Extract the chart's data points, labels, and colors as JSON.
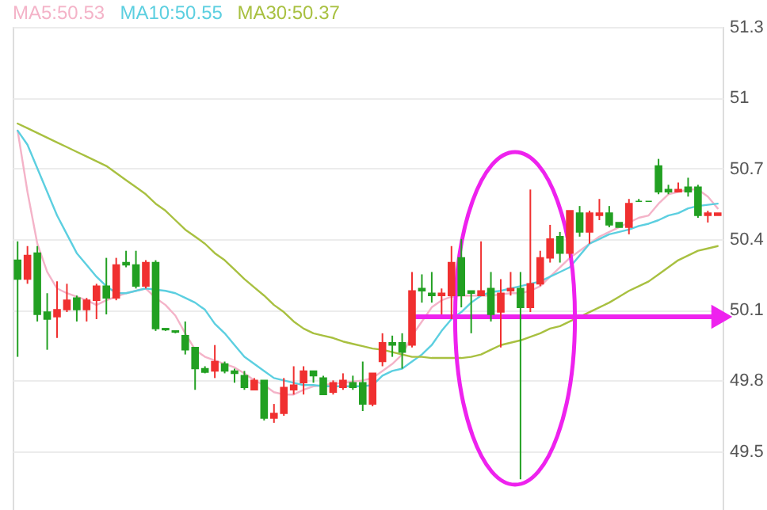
{
  "chart_data": {
    "type": "candlestick",
    "categories": [
      null,
      null,
      null,
      null,
      null,
      null,
      null,
      null,
      null,
      null,
      null,
      null,
      null,
      null,
      null,
      null,
      null,
      null,
      null,
      null,
      null,
      null,
      null,
      null,
      null,
      null,
      null,
      null,
      null,
      null,
      null,
      null,
      null,
      null,
      null,
      null,
      null,
      null,
      null,
      null,
      null,
      null,
      null,
      null,
      null,
      null,
      null,
      null,
      null,
      null,
      null,
      null,
      null,
      null,
      null,
      null,
      null,
      null,
      null,
      null,
      null,
      null,
      null,
      null,
      null,
      null,
      null,
      null,
      null,
      null,
      null,
      null
    ],
    "ohlc": [
      [
        50.31,
        50.39,
        49.9,
        50.23
      ],
      [
        50.23,
        50.37,
        50.21,
        50.33
      ],
      [
        50.34,
        50.37,
        50.05,
        50.08
      ],
      [
        50.09,
        50.17,
        49.93,
        50.06
      ],
      [
        50.07,
        50.22,
        49.98,
        50.1
      ],
      [
        50.1,
        50.21,
        50.09,
        50.14
      ],
      [
        50.15,
        50.16,
        50.05,
        50.1
      ],
      [
        50.1,
        50.15,
        50.05,
        50.14
      ],
      [
        50.14,
        50.21,
        50.06,
        50.2
      ],
      [
        50.2,
        50.32,
        50.08,
        50.15
      ],
      [
        50.15,
        50.32,
        50.14,
        50.29
      ],
      [
        50.3,
        50.35,
        50.28,
        50.29
      ],
      [
        50.29,
        50.35,
        50.19,
        50.2
      ],
      [
        50.2,
        50.31,
        50.19,
        50.3
      ],
      [
        50.3,
        50.31,
        50.01,
        50.02
      ],
      [
        50.02,
        50.02,
        50.01,
        50.015
      ],
      [
        50.01,
        50.01,
        50.0,
        50.005
      ],
      [
        49.99,
        50.05,
        49.91,
        49.93
      ],
      [
        49.94,
        49.94,
        49.76,
        49.85
      ],
      [
        49.85,
        49.86,
        49.83,
        49.835
      ],
      [
        49.84,
        49.95,
        49.81,
        49.88
      ],
      [
        49.87,
        49.88,
        49.83,
        49.84
      ],
      [
        49.84,
        49.85,
        49.79,
        49.83
      ],
      [
        49.82,
        49.84,
        49.76,
        49.77
      ],
      [
        49.76,
        49.81,
        49.76,
        49.8
      ],
      [
        49.8,
        49.8,
        49.63,
        49.64
      ],
      [
        49.64,
        49.7,
        49.62,
        49.66
      ],
      [
        49.66,
        49.81,
        49.65,
        49.77
      ],
      [
        49.76,
        49.86,
        49.74,
        49.78
      ],
      [
        49.79,
        49.86,
        49.74,
        49.84
      ],
      [
        49.84,
        49.84,
        49.79,
        49.82
      ],
      [
        49.81,
        49.82,
        49.74,
        49.74
      ],
      [
        49.75,
        49.8,
        49.74,
        49.79
      ],
      [
        49.77,
        49.83,
        49.76,
        49.8
      ],
      [
        49.79,
        49.82,
        49.76,
        49.77
      ],
      [
        49.79,
        49.88,
        49.67,
        49.7
      ],
      [
        49.7,
        49.83,
        49.69,
        49.83
      ],
      [
        49.88,
        50.0,
        49.86,
        49.96
      ],
      [
        49.96,
        49.99,
        49.9,
        49.95
      ],
      [
        49.96,
        50.0,
        49.85,
        49.92
      ],
      [
        49.95,
        50.26,
        49.94,
        50.18
      ],
      [
        50.19,
        50.25,
        50.13,
        50.18
      ],
      [
        50.17,
        50.26,
        50.13,
        50.16
      ],
      [
        50.16,
        50.19,
        50.08,
        50.17
      ],
      [
        50.16,
        50.37,
        50.06,
        50.3
      ],
      [
        50.32,
        50.4,
        50.11,
        50.16
      ],
      [
        50.18,
        50.18,
        50.0,
        50.17
      ],
      [
        50.16,
        50.39,
        50.16,
        50.18
      ],
      [
        50.19,
        50.26,
        50.05,
        50.08
      ],
      [
        50.09,
        50.23,
        49.94,
        50.17
      ],
      [
        50.18,
        50.26,
        50.16,
        50.19
      ],
      [
        50.19,
        50.26,
        49.38,
        50.11
      ],
      [
        50.11,
        50.61,
        50.09,
        50.21
      ],
      [
        50.21,
        50.35,
        50.2,
        50.32
      ],
      [
        50.32,
        50.46,
        50.3,
        50.4
      ],
      [
        50.41,
        50.43,
        50.3,
        50.34
      ],
      [
        50.34,
        50.52,
        50.32,
        50.52
      ],
      [
        50.51,
        50.54,
        50.41,
        50.43
      ],
      [
        50.43,
        50.52,
        50.38,
        50.51
      ],
      [
        50.5,
        50.57,
        50.48,
        50.51
      ],
      [
        50.51,
        50.54,
        50.45,
        50.46
      ],
      [
        50.47,
        50.47,
        50.45,
        50.45
      ],
      [
        50.45,
        50.57,
        50.42,
        50.55
      ],
      [
        50.56,
        50.57,
        50.56,
        50.56
      ],
      [
        50.56,
        50.56,
        50.56,
        50.56
      ],
      [
        50.71,
        50.74,
        50.59,
        50.6
      ],
      [
        50.61,
        50.63,
        50.59,
        50.6
      ],
      [
        50.6,
        50.64,
        50.6,
        50.61
      ],
      [
        50.62,
        50.66,
        50.58,
        50.6
      ],
      [
        50.62,
        50.63,
        50.49,
        50.5
      ],
      [
        50.5,
        50.52,
        50.47,
        50.51
      ],
      [
        50.5,
        50.51,
        50.5,
        50.51
      ]
    ],
    "colors": [
      "#22a022",
      "#f03030",
      "#22a022",
      "#22a022",
      "#f03030",
      "#f03030",
      "#22a022",
      "#f03030",
      "#f03030",
      "#22a022",
      "#f03030",
      "#22a022",
      "#22a022",
      "#f03030",
      "#22a022",
      "#22a022",
      "#22a022",
      "#22a022",
      "#22a022",
      "#22a022",
      "#f03030",
      "#22a022",
      "#22a022",
      "#22a022",
      "#f03030",
      "#22a022",
      "#f03030",
      "#f03030",
      "#f03030",
      "#f03030",
      "#22a022",
      "#22a022",
      "#f03030",
      "#f03030",
      "#22a022",
      "#22a022",
      "#f03030",
      "#f03030",
      "#22a022",
      "#22a022",
      "#f03030",
      "#22a022",
      "#22a022",
      "#f03030",
      "#f03030",
      "#22a022",
      "#22a022",
      "#f03030",
      "#22a022",
      "#f03030",
      "#f03030",
      "#22a022",
      "#f03030",
      "#f03030",
      "#f03030",
      "#22a022",
      "#f03030",
      "#22a022",
      "#f03030",
      "#f03030",
      "#22a022",
      "#22a022",
      "#f03030",
      "#22a022",
      "#22a022",
      "#22a022",
      "#22a022",
      "#f03030",
      "#22a022",
      "#22a022",
      "#f03030",
      "#f03030"
    ],
    "series": [
      {
        "name": "MA5:50.53",
        "type": "line",
        "color": "#f4b3c8",
        "values": [
          50.86,
          50.6,
          50.38,
          50.26,
          50.19,
          50.17,
          50.155,
          50.14,
          50.12,
          50.14,
          50.155,
          50.17,
          50.18,
          50.19,
          50.15,
          50.12,
          50.075,
          50.0,
          49.93,
          49.9,
          49.885,
          49.87,
          49.855,
          49.83,
          49.8,
          49.78,
          49.75,
          49.74,
          49.74,
          49.76,
          49.775,
          49.78,
          49.785,
          49.79,
          49.795,
          49.8,
          49.81,
          49.84,
          49.87,
          49.91,
          49.99,
          50.05,
          50.11,
          50.14,
          50.155,
          50.16,
          50.16,
          50.16,
          50.16,
          50.165,
          50.17,
          50.17,
          50.18,
          50.2,
          50.24,
          50.28,
          50.32,
          50.35,
          50.38,
          50.41,
          50.43,
          50.45,
          50.47,
          50.49,
          50.5,
          50.55,
          50.59,
          50.6,
          50.61,
          50.61,
          50.58,
          50.53
        ]
      },
      {
        "name": "MA10:50.55",
        "type": "line",
        "color": "#5ccfe0",
        "values": [
          50.86,
          50.8,
          50.7,
          50.6,
          50.5,
          50.42,
          50.34,
          50.29,
          50.24,
          50.2,
          50.17,
          50.17,
          50.18,
          50.19,
          50.185,
          50.18,
          50.17,
          50.15,
          50.13,
          50.1,
          50.04,
          50.0,
          49.95,
          49.9,
          49.87,
          49.84,
          49.81,
          49.8,
          49.79,
          49.78,
          49.78,
          49.775,
          49.775,
          49.775,
          49.775,
          49.775,
          49.78,
          49.82,
          49.84,
          49.85,
          49.88,
          49.91,
          49.95,
          50.01,
          50.06,
          50.09,
          50.13,
          50.16,
          50.175,
          50.18,
          50.19,
          50.2,
          50.21,
          50.22,
          50.24,
          50.26,
          50.28,
          50.33,
          50.38,
          50.4,
          50.42,
          50.43,
          50.44,
          50.455,
          50.465,
          50.48,
          50.5,
          50.51,
          50.53,
          50.54,
          50.545,
          50.55
        ]
      },
      {
        "name": "MA30:50.37",
        "type": "line",
        "color": "#a8c040",
        "values": [
          50.89,
          50.87,
          50.85,
          50.83,
          50.81,
          50.79,
          50.77,
          50.75,
          50.73,
          50.71,
          50.68,
          50.65,
          50.62,
          50.59,
          50.55,
          50.52,
          50.48,
          50.44,
          50.41,
          50.38,
          50.34,
          50.31,
          50.27,
          50.23,
          50.195,
          50.16,
          50.12,
          50.09,
          50.05,
          50.02,
          50.0,
          49.99,
          49.98,
          49.965,
          49.955,
          49.945,
          49.935,
          49.93,
          49.92,
          49.91,
          49.9,
          49.9,
          49.895,
          49.895,
          49.895,
          49.895,
          49.9,
          49.91,
          49.93,
          49.95,
          49.96,
          49.97,
          49.985,
          50.0,
          50.02,
          50.03,
          50.05,
          50.07,
          50.09,
          50.11,
          50.13,
          50.155,
          50.18,
          50.2,
          50.22,
          50.25,
          50.28,
          50.31,
          50.33,
          50.35,
          50.36,
          50.37
        ]
      }
    ],
    "ylim": [
      49.25,
      51.3
    ],
    "yticks": [
      49.5,
      49.8,
      50.1,
      50.4,
      50.7,
      51,
      51.3
    ],
    "grid": "y",
    "tick_labels": "y",
    "legend": "top left"
  }
}
